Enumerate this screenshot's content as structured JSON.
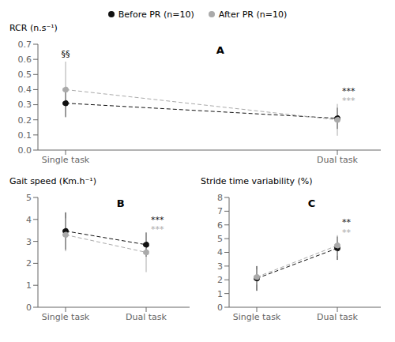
{
  "chart_data": [
    {
      "type": "line",
      "title": "A",
      "y_label": "RCR (n.s⁻¹)",
      "categories": [
        "Single task",
        "Dual task"
      ],
      "ylim": [
        0,
        0.7
      ],
      "yticks": [
        {
          "value": 0,
          "label": "0.0"
        },
        0.1,
        0.2,
        0.3,
        0.4,
        0.5,
        0.6,
        0.7
      ],
      "grid": false,
      "legend": "top",
      "series": [
        {
          "name": "Before PR (n=10)",
          "color": "#111111",
          "values": [
            0.31,
            0.21
          ],
          "errors": [
            0.09,
            0.07
          ],
          "line_style": "dashed",
          "marker": "circle"
        },
        {
          "name": "After PR (n=10)",
          "color": "#aaaaaa",
          "values": [
            0.4,
            0.2
          ],
          "errors": [
            0.185,
            0.105
          ],
          "line_style": "dashed",
          "marker": "circle"
        }
      ],
      "annotations": [
        {
          "text": "***",
          "x": "Dual task",
          "color": "#aaaaaa"
        },
        {
          "text": "***",
          "x": "Dual task",
          "color": "#111111"
        },
        {
          "text": "§§",
          "x": "Single task",
          "color": "#000000"
        }
      ]
    },
    {
      "type": "line",
      "title": "B",
      "y_label": "Gait speed (Km.h⁻¹)",
      "categories": [
        "Single task",
        "Dual task"
      ],
      "ylim": [
        0,
        5
      ],
      "yticks": [
        0,
        1,
        2,
        3,
        4,
        5
      ],
      "grid": false,
      "series": [
        {
          "name": "Before PR (n=10)",
          "color": "#111111",
          "values": [
            3.47,
            2.85
          ],
          "errors": [
            0.85,
            0.55
          ],
          "line_style": "dashed",
          "marker": "circle"
        },
        {
          "name": "After PR (n=10)",
          "color": "#aaaaaa",
          "values": [
            3.3,
            2.5
          ],
          "errors": [
            0.75,
            0.9
          ],
          "line_style": "dashed",
          "marker": "circle"
        }
      ],
      "annotations": [
        {
          "text": "***",
          "x": "Dual task",
          "color": "#aaaaaa"
        },
        {
          "text": "***",
          "x": "Dual task",
          "color": "#111111"
        }
      ]
    },
    {
      "type": "line",
      "title": "C",
      "y_label": "Stride time variability (%)",
      "categories": [
        "Single task",
        "Dual task"
      ],
      "ylim": [
        0,
        8
      ],
      "yticks": [
        0,
        1,
        2,
        3,
        4,
        5,
        6,
        7,
        8
      ],
      "grid": false,
      "series": [
        {
          "name": "Before PR (n=10)",
          "color": "#111111",
          "values": [
            2.1,
            4.3
          ],
          "errors": [
            0.9,
            0.85
          ],
          "line_style": "dashed",
          "marker": "circle"
        },
        {
          "name": "After PR (n=10)",
          "color": "#aaaaaa",
          "values": [
            2.2,
            4.5
          ],
          "errors": [
            0.55,
            0.75
          ],
          "line_style": "dashed",
          "marker": "circle"
        }
      ],
      "annotations": [
        {
          "text": "**",
          "x": "Dual task",
          "color": "#aaaaaa"
        },
        {
          "text": "**",
          "x": "Dual task",
          "color": "#111111"
        }
      ]
    }
  ]
}
